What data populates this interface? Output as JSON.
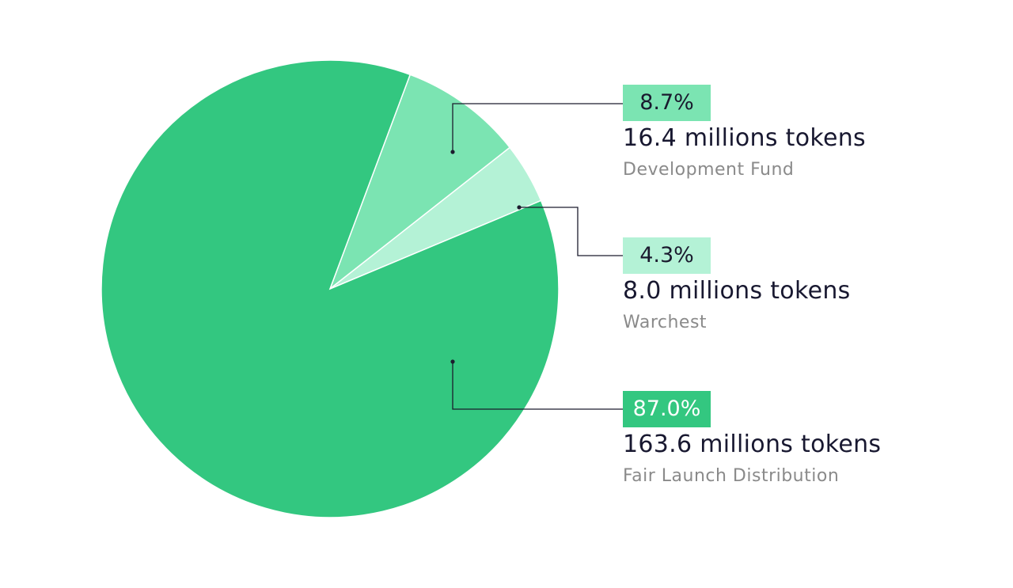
{
  "chart_data": {
    "type": "pie",
    "slices": [
      {
        "percent_label": "8.7%",
        "value": 8.7,
        "tokens_label": "16.4 millions tokens",
        "name": "Development Fund",
        "color": "#7be4b2",
        "badge_text_color": "#1a1a2e"
      },
      {
        "percent_label": "4.3%",
        "value": 4.3,
        "tokens_label": "8.0 millions tokens",
        "name": "Warchest",
        "color": "#b4f2d6",
        "badge_text_color": "#1a1a2e"
      },
      {
        "percent_label": "87.0%",
        "value": 87.0,
        "tokens_label": "163.6 millions tokens",
        "name": "Fair Launch Distribution",
        "color": "#33c780",
        "badge_text_color": "#ffffff"
      }
    ],
    "start_angle_deg": 20.5,
    "direction": "clockwise",
    "legend_placement": "right"
  }
}
